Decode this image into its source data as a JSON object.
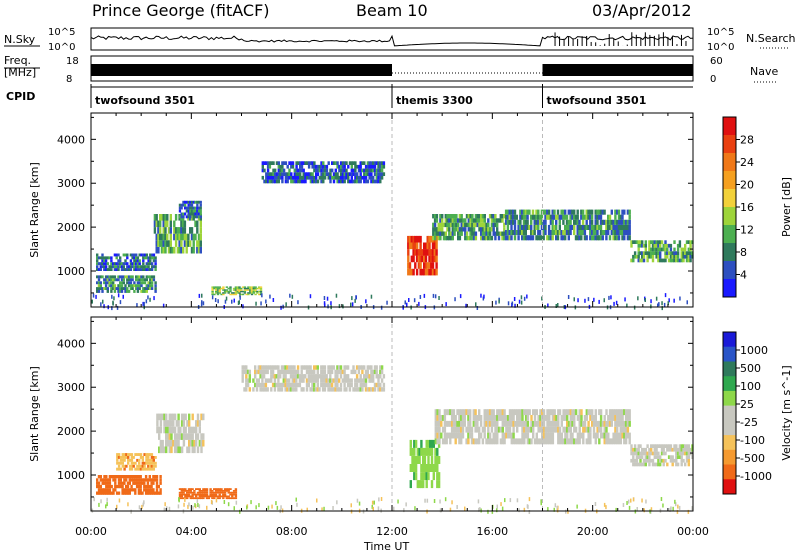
{
  "header": {
    "station": "Prince George (fitACF)",
    "beam": "Beam 10",
    "date": "03/Apr/2012"
  },
  "top_panels": {
    "nsky_label": "N.Sky",
    "nsearch_label": "N.Search",
    "nsky_ticks": [
      "10^5",
      "10^0"
    ],
    "nsky_right_ticks": [
      "10^5",
      "10^0"
    ],
    "freq_label": "Freq.",
    "freq_unit": "[MHz]",
    "freq_ticks": [
      "18",
      "8"
    ],
    "nave_label": "Nave",
    "nave_ticks": [
      "60",
      "0"
    ],
    "cpid_label": "CPID",
    "cpid_segments": [
      {
        "name": "twofsound 3501",
        "start": 0,
        "end": 12
      },
      {
        "name": "themis 3300",
        "start": 12,
        "end": 18
      },
      {
        "name": "twofsound 3501",
        "start": 18,
        "end": 24
      }
    ]
  },
  "x_axis": {
    "label": "Time UT",
    "ticks": [
      "00:00",
      "04:00",
      "08:00",
      "12:00",
      "16:00",
      "20:00",
      "00:00"
    ],
    "tick_hours": [
      0,
      4,
      8,
      12,
      16,
      20,
      24
    ]
  },
  "colors": {
    "power": [
      "#1a1aff",
      "#2d4fc0",
      "#2f7a5c",
      "#4caf50",
      "#9ed43a",
      "#f2d13a",
      "#f5a020",
      "#f07818",
      "#ea4010",
      "#e01010"
    ],
    "velocity": [
      "#e01010",
      "#f06a18",
      "#f59a30",
      "#f5c25a",
      "#c8c8c0",
      "#c8c8c0",
      "#8ed84a",
      "#2fa84f",
      "#2f7a5c",
      "#2a55c8",
      "#1a1ad8"
    ],
    "gate_line": "#bbbbbb"
  },
  "chart_data": [
    {
      "type": "heatmap",
      "panel": "power",
      "ylabel": "Slant Range [km]",
      "xlabel": "Time UT",
      "xlim": [
        0,
        24
      ],
      "ylim": [
        180,
        4600
      ],
      "yticks": [
        1000,
        2000,
        3000,
        4000
      ],
      "colorbar": {
        "label": "Power [dB]",
        "ticks": [
          4,
          8,
          12,
          16,
          20,
          24,
          28
        ],
        "range": [
          0,
          30
        ]
      },
      "regions": [
        {
          "t": [
            0.2,
            2.6
          ],
          "r": [
            500,
            900
          ],
          "value": 8
        },
        {
          "t": [
            0.2,
            2.6
          ],
          "r": [
            1000,
            1400
          ],
          "value": 6
        },
        {
          "t": [
            2.5,
            4.4
          ],
          "r": [
            1400,
            2300
          ],
          "value": 10
        },
        {
          "t": [
            3.5,
            4.4
          ],
          "r": [
            2200,
            2600
          ],
          "value": 6
        },
        {
          "t": [
            4.8,
            6.8
          ],
          "r": [
            450,
            650
          ],
          "value": 12
        },
        {
          "t": [
            6.8,
            11.7
          ],
          "r": [
            3000,
            3500
          ],
          "value": 5
        },
        {
          "t": [
            12.6,
            13.8
          ],
          "r": [
            900,
            1800
          ],
          "value": 26
        },
        {
          "t": [
            13.6,
            16.5
          ],
          "r": [
            1700,
            2300
          ],
          "value": 10
        },
        {
          "t": [
            16.5,
            21.5
          ],
          "r": [
            1700,
            2400
          ],
          "value": 8
        },
        {
          "t": [
            21.5,
            24
          ],
          "r": [
            1200,
            1700
          ],
          "value": 10
        }
      ]
    },
    {
      "type": "heatmap",
      "panel": "velocity",
      "ylabel": "Slant Range [km]",
      "xlabel": "Time UT",
      "xlim": [
        0,
        24
      ],
      "ylim": [
        180,
        4600
      ],
      "yticks": [
        1000,
        2000,
        3000,
        4000
      ],
      "colorbar": {
        "label": "Velocity [m s^-1]",
        "ticks": [
          "1000",
          "500",
          "100",
          "25",
          "-25",
          "-100",
          "-500",
          "-1000"
        ]
      },
      "regions": [
        {
          "t": [
            0.2,
            2.8
          ],
          "r": [
            550,
            1000
          ],
          "value": -300
        },
        {
          "t": [
            1.0,
            2.6
          ],
          "r": [
            1100,
            1500
          ],
          "value": -80
        },
        {
          "t": [
            2.6,
            4.5
          ],
          "r": [
            1500,
            2400
          ],
          "value": 0
        },
        {
          "t": [
            3.5,
            5.8
          ],
          "r": [
            450,
            700
          ],
          "value": -200
        },
        {
          "t": [
            6.0,
            11.7
          ],
          "r": [
            2900,
            3500
          ],
          "value": 0
        },
        {
          "t": [
            12.7,
            13.9
          ],
          "r": [
            700,
            1800
          ],
          "value": 80
        },
        {
          "t": [
            13.7,
            16.8
          ],
          "r": [
            1700,
            2500
          ],
          "value": 0
        },
        {
          "t": [
            16.8,
            21.5
          ],
          "r": [
            1700,
            2500
          ],
          "value": 0
        },
        {
          "t": [
            21.5,
            24
          ],
          "r": [
            1200,
            1700
          ],
          "value": 0
        }
      ]
    }
  ]
}
